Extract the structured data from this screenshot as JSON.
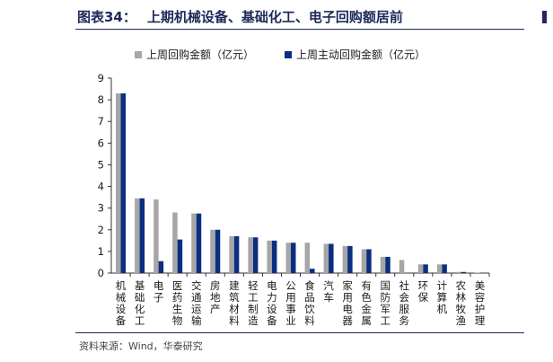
{
  "header": {
    "figure_number": "图表34：",
    "title": "上期机械设备、基础化工、电子回购额居前"
  },
  "source": "资料来源：Wind，华泰研究",
  "chart_data": {
    "type": "bar",
    "categories": [
      "机械设备",
      "基础化工",
      "电子",
      "医药生物",
      "交通运输",
      "房地产",
      "建筑材料",
      "轻工制造",
      "电力设备",
      "公用事业",
      "食品饮料",
      "汽车",
      "家用电器",
      "有色金属",
      "国防军工",
      "社会服务",
      "环保",
      "计算机",
      "农林牧渔",
      "美容护理"
    ],
    "series": [
      {
        "name": "上周回购金额（亿元）",
        "color": "#a6a6a6",
        "values": [
          8.3,
          3.45,
          3.4,
          2.8,
          2.75,
          2.0,
          1.7,
          1.65,
          1.5,
          1.4,
          1.4,
          1.35,
          1.25,
          1.1,
          0.75,
          0.6,
          0.4,
          0.4,
          0.05,
          0.02
        ]
      },
      {
        "name": "上周主动回购金额（亿元）",
        "color": "#0b2f80",
        "values": [
          8.3,
          3.45,
          0.55,
          1.55,
          2.75,
          2.0,
          1.7,
          1.65,
          1.5,
          1.4,
          0.2,
          1.35,
          1.25,
          1.1,
          0.75,
          0.0,
          0.4,
          0.4,
          0.05,
          0.0
        ]
      }
    ],
    "ylim": [
      0,
      9
    ],
    "yticks": [
      0,
      1,
      2,
      3,
      4,
      5,
      6,
      7,
      8,
      9
    ]
  }
}
